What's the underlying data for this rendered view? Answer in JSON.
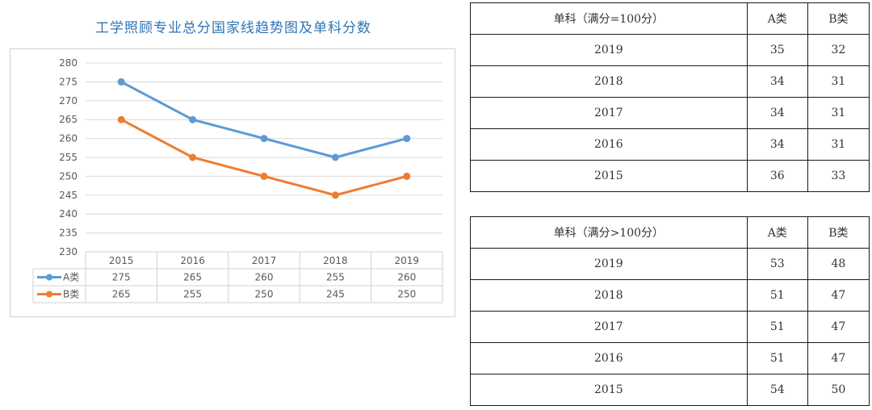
{
  "chart_data": {
    "type": "line",
    "title": "工学照顾专业总分国家线趋势图及单科分数",
    "categories": [
      "2015",
      "2016",
      "2017",
      "2018",
      "2019"
    ],
    "series": [
      {
        "name": "A类",
        "values": [
          275,
          265,
          260,
          255,
          260
        ],
        "color": "#5b9bd5"
      },
      {
        "name": "B类",
        "values": [
          265,
          255,
          250,
          245,
          250
        ],
        "color": "#ed7d31"
      }
    ],
    "ylim": [
      230,
      280
    ],
    "yticks": [
      230,
      235,
      240,
      245,
      250,
      255,
      260,
      265,
      270,
      275,
      280
    ],
    "grid": true,
    "legend": "data-table-below"
  },
  "tables": [
    {
      "header": [
        "单科（满分=100分）",
        "A类",
        "B类"
      ],
      "rows": [
        [
          "2019",
          "35",
          "32"
        ],
        [
          "2018",
          "34",
          "31"
        ],
        [
          "2017",
          "34",
          "31"
        ],
        [
          "2016",
          "34",
          "31"
        ],
        [
          "2015",
          "36",
          "33"
        ]
      ]
    },
    {
      "header": [
        "单科（满分>100分）",
        "A类",
        "B类"
      ],
      "rows": [
        [
          "2019",
          "53",
          "48"
        ],
        [
          "2018",
          "51",
          "47"
        ],
        [
          "2017",
          "51",
          "47"
        ],
        [
          "2016",
          "51",
          "47"
        ],
        [
          "2015",
          "54",
          "50"
        ]
      ]
    }
  ]
}
